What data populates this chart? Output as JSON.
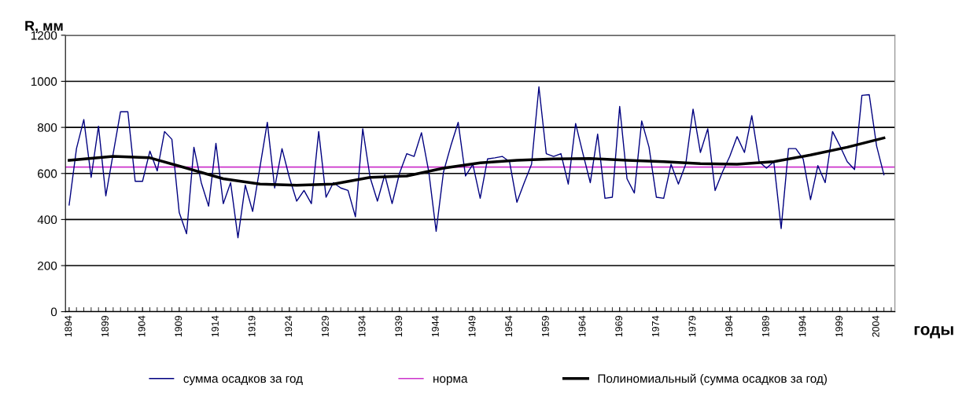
{
  "chart_data": {
    "type": "line",
    "ylabel": "R, мм",
    "xlabel": "годы",
    "x": [
      1894,
      1895,
      1896,
      1897,
      1898,
      1899,
      1900,
      1901,
      1902,
      1903,
      1904,
      1905,
      1906,
      1907,
      1908,
      1909,
      1910,
      1911,
      1912,
      1913,
      1914,
      1915,
      1916,
      1917,
      1918,
      1919,
      1920,
      1921,
      1922,
      1923,
      1924,
      1925,
      1926,
      1927,
      1928,
      1929,
      1930,
      1931,
      1932,
      1933,
      1934,
      1935,
      1936,
      1937,
      1938,
      1939,
      1940,
      1941,
      1942,
      1943,
      1944,
      1945,
      1946,
      1947,
      1948,
      1949,
      1950,
      1951,
      1952,
      1953,
      1954,
      1955,
      1956,
      1957,
      1958,
      1959,
      1960,
      1961,
      1962,
      1963,
      1964,
      1965,
      1966,
      1967,
      1968,
      1969,
      1970,
      1971,
      1972,
      1973,
      1974,
      1975,
      1976,
      1977,
      1978,
      1979,
      1980,
      1981,
      1982,
      1983,
      1984,
      1985,
      1986,
      1987,
      1988,
      1989,
      1990,
      1991,
      1992,
      1993,
      1994,
      1995,
      1996,
      1997,
      1998,
      1999,
      2000,
      2001,
      2002,
      2003,
      2004,
      2005
    ],
    "series": [
      {
        "name": "сумма осадков за год",
        "color": "#000080",
        "values": [
          463,
          708,
          834,
          583,
          805,
          503,
          686,
          868,
          868,
          566,
          566,
          697,
          611,
          782,
          748,
          430,
          338,
          714,
          560,
          458,
          731,
          469,
          560,
          321,
          549,
          435,
          628,
          822,
          537,
          708,
          583,
          480,
          526,
          469,
          782,
          497,
          560,
          537,
          526,
          412,
          794,
          583,
          480,
          594,
          469,
          600,
          686,
          674,
          777,
          606,
          349,
          606,
          720,
          822,
          589,
          640,
          492,
          663,
          668,
          674,
          651,
          475,
          560,
          640,
          976,
          686,
          674,
          686,
          554,
          817,
          686,
          560,
          771,
          492,
          497,
          891,
          577,
          515,
          828,
          714,
          497,
          492,
          640,
          554,
          640,
          879,
          691,
          794,
          526,
          606,
          674,
          760,
          691,
          851,
          651,
          623,
          651,
          361,
          708,
          708,
          663,
          486,
          634,
          560,
          782,
          720,
          651,
          617,
          939,
          942,
          720,
          594
        ]
      },
      {
        "name": "Полиномиальный (сумма осадков за год)",
        "color": "#000000",
        "type": "line",
        "x": [
          1894,
          1900,
          1905,
          1910,
          1915,
          1920,
          1925,
          1930,
          1935,
          1940,
          1945,
          1950,
          1955,
          1960,
          1965,
          1970,
          1975,
          1980,
          1985,
          1990,
          1995,
          2000,
          2005
        ],
        "values": [
          657,
          674,
          668,
          623,
          577,
          554,
          549,
          554,
          583,
          589,
          623,
          646,
          657,
          663,
          665,
          657,
          651,
          643,
          640,
          651,
          680,
          714,
          754
        ]
      }
    ],
    "ref_lines": [
      {
        "axis": "y",
        "value": 628,
        "label": "норма",
        "color": "#cc33cc"
      }
    ],
    "xlim": [
      1893.5,
      2006.5
    ],
    "xticks": [
      1894,
      1899,
      1904,
      1909,
      1914,
      1919,
      1924,
      1929,
      1934,
      1939,
      1944,
      1949,
      1954,
      1959,
      1964,
      1969,
      1974,
      1979,
      1984,
      1989,
      1994,
      1999,
      2004
    ],
    "ylim": [
      0,
      1200
    ],
    "yticks": [
      0,
      200,
      400,
      600,
      800,
      1000,
      1200
    ],
    "grid": "y",
    "legend": "bottom",
    "marker": "none",
    "line_style": "solid"
  }
}
